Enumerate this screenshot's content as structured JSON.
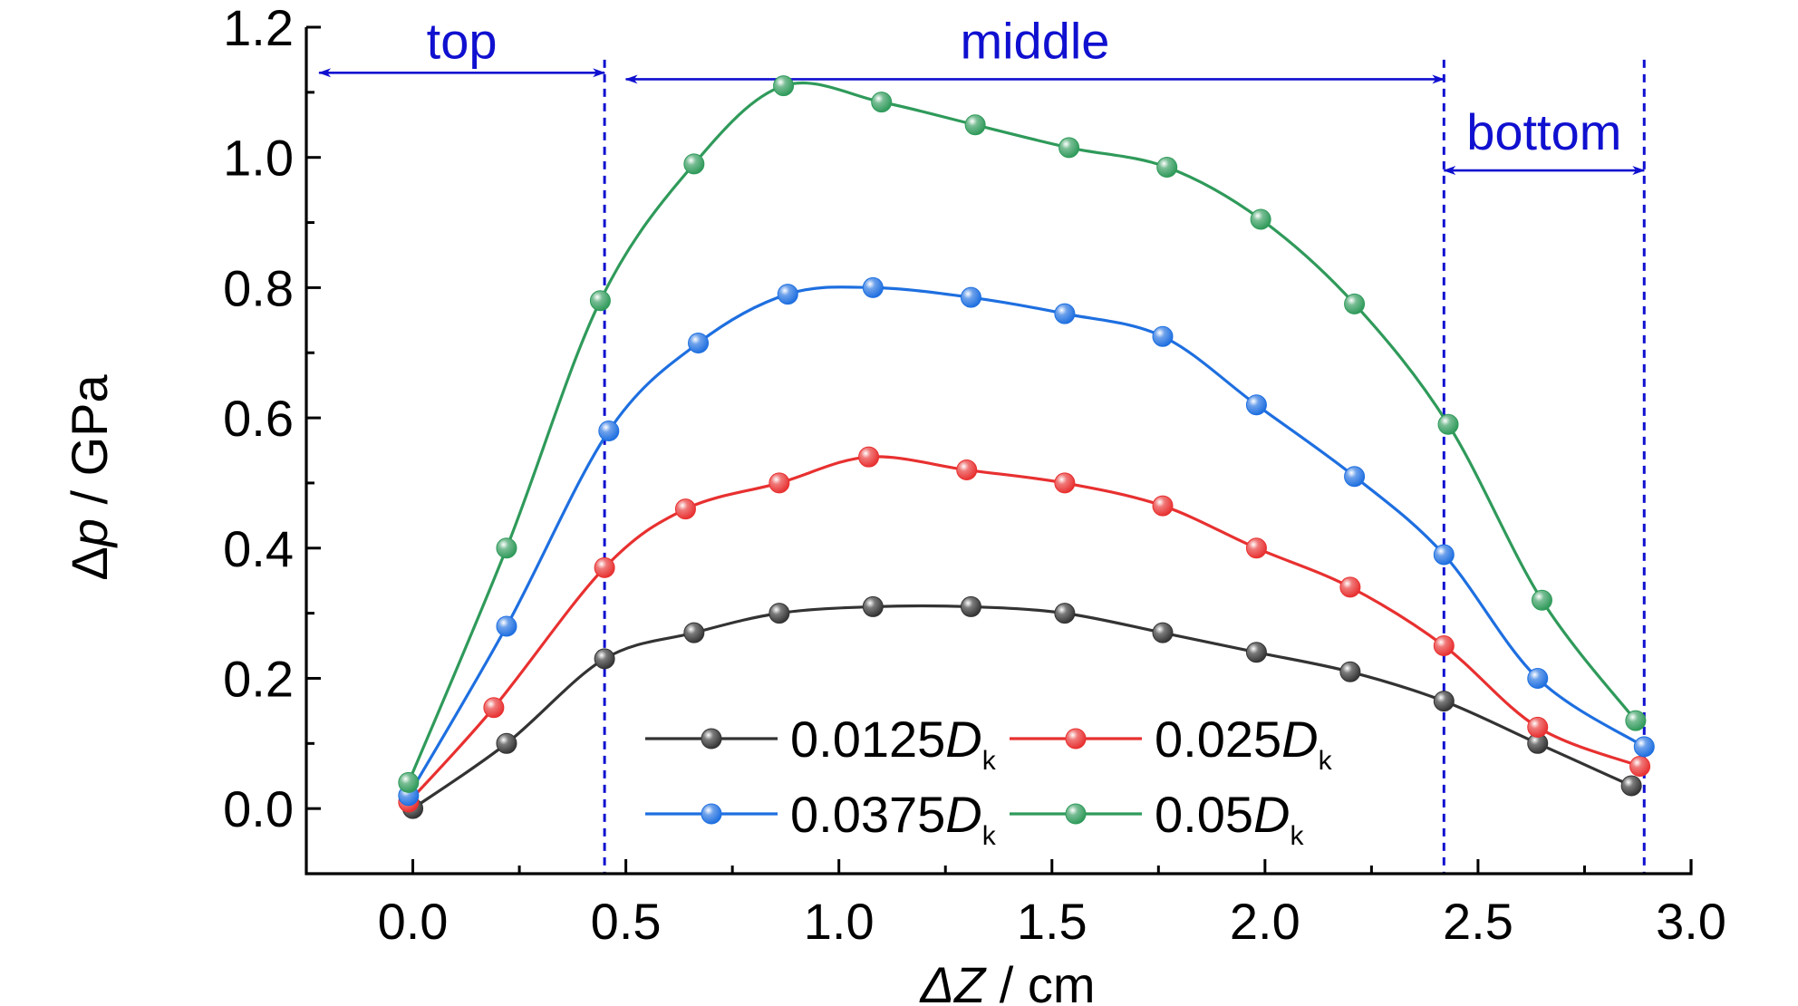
{
  "chart_data": {
    "type": "line",
    "xlabel": "ΔZ / cm",
    "xlabel_parts": {
      "symbol": "ΔZ",
      "unit": " / cm"
    },
    "ylabel": "Δp / GPa",
    "ylabel_parts": {
      "delta": "Δ",
      "symbol": "p",
      "unit": " / GPa"
    },
    "xlim": [
      -0.25,
      3.0
    ],
    "ylim": [
      -0.1,
      1.2
    ],
    "xticks": [
      "0.0",
      "0.5",
      "1.0",
      "1.5",
      "2.0",
      "2.5",
      "3.0"
    ],
    "xtick_values": [
      0,
      0.5,
      1.0,
      1.5,
      2.0,
      2.5,
      3.0
    ],
    "yticks": [
      "0.0",
      "0.2",
      "0.4",
      "0.6",
      "0.8",
      "1.0",
      "1.2"
    ],
    "ytick_values": [
      0,
      0.2,
      0.4,
      0.6,
      0.8,
      1.0,
      1.2
    ],
    "grid": false,
    "legend_position": "bottom-center",
    "regions": [
      {
        "label": "top",
        "from": -0.22,
        "to": 0.45,
        "arrow_y": 1.13,
        "label_y": 1.18
      },
      {
        "label": "middle",
        "from": 0.5,
        "to": 2.42,
        "arrow_y": 1.12,
        "label_y": 1.18
      },
      {
        "label": "bottom",
        "from": 2.42,
        "to": 2.89,
        "arrow_y": 0.98,
        "label_y": 1.04
      }
    ],
    "dividers": [
      0.45,
      2.42,
      2.89
    ],
    "region_color": "#1010d0",
    "series": [
      {
        "name": "0.0125D",
        "name_prefix": "0.0125",
        "name_symbol": "D",
        "name_sub": "k",
        "color": "#333333",
        "x": [
          0.0,
          0.22,
          0.45,
          0.66,
          0.86,
          1.08,
          1.31,
          1.53,
          1.76,
          1.98,
          2.2,
          2.42,
          2.64,
          2.86
        ],
        "y": [
          0.0,
          0.1,
          0.23,
          0.27,
          0.3,
          0.31,
          0.31,
          0.3,
          0.27,
          0.24,
          0.21,
          0.165,
          0.1,
          0.035
        ]
      },
      {
        "name": "0.025D",
        "name_prefix": "0.025",
        "name_symbol": "D",
        "name_sub": "k",
        "color": "#e83030",
        "x": [
          -0.01,
          0.19,
          0.45,
          0.64,
          0.86,
          1.07,
          1.3,
          1.53,
          1.76,
          1.98,
          2.2,
          2.42,
          2.64,
          2.88
        ],
        "y": [
          0.01,
          0.155,
          0.37,
          0.46,
          0.5,
          0.54,
          0.52,
          0.5,
          0.465,
          0.4,
          0.34,
          0.25,
          0.125,
          0.065
        ]
      },
      {
        "name": "0.0375D",
        "name_prefix": "0.0375",
        "name_symbol": "D",
        "name_sub": "k",
        "color": "#1e6fe0",
        "x": [
          -0.01,
          0.22,
          0.46,
          0.67,
          0.88,
          1.08,
          1.31,
          1.53,
          1.76,
          1.98,
          2.21,
          2.42,
          2.64,
          2.89
        ],
        "y": [
          0.02,
          0.28,
          0.58,
          0.715,
          0.79,
          0.8,
          0.785,
          0.76,
          0.725,
          0.62,
          0.51,
          0.39,
          0.2,
          0.095
        ]
      },
      {
        "name": "0.05D",
        "name_prefix": "0.05",
        "name_symbol": "D",
        "name_sub": "k",
        "color": "#2f9a5a",
        "x": [
          -0.01,
          0.22,
          0.44,
          0.66,
          0.87,
          1.1,
          1.32,
          1.54,
          1.77,
          1.99,
          2.21,
          2.43,
          2.65,
          2.87
        ],
        "y": [
          0.04,
          0.4,
          0.78,
          0.99,
          1.11,
          1.085,
          1.05,
          1.015,
          0.985,
          0.905,
          0.775,
          0.59,
          0.32,
          0.135
        ]
      }
    ]
  }
}
